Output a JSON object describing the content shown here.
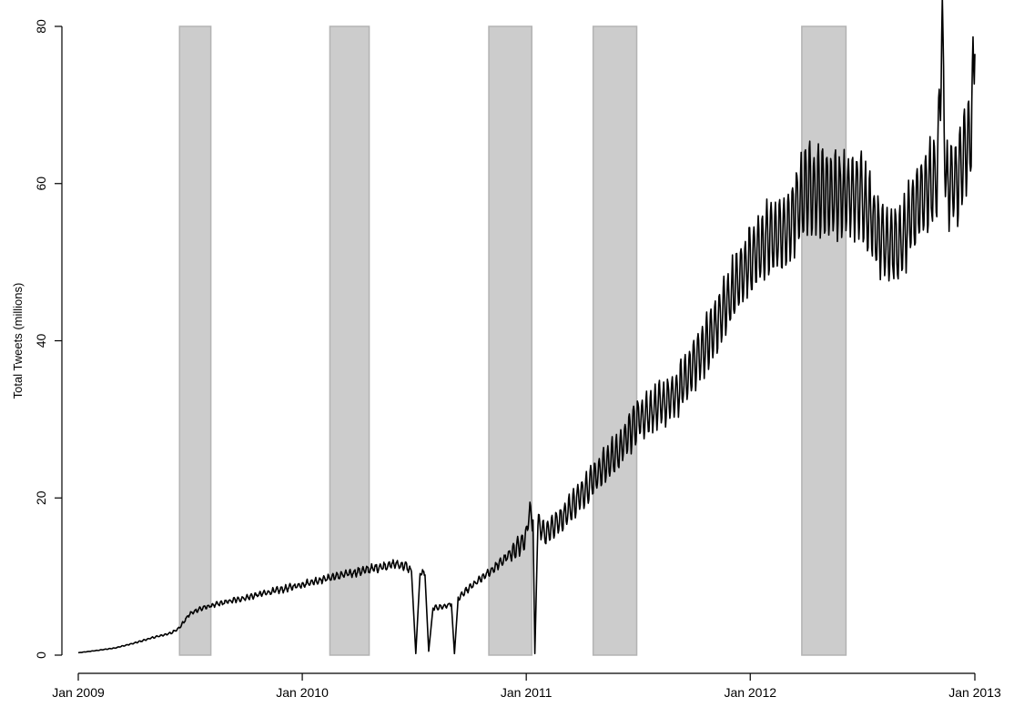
{
  "chart_data": {
    "type": "line",
    "ylabel": "Total Tweets (millions)",
    "xlabel": "",
    "title": "",
    "grid": false,
    "legend": "none",
    "xlim": [
      "2009-01-01",
      "2013-01-01"
    ],
    "ylim": [
      0,
      80
    ],
    "x_ticks": [
      {
        "date": "2009-01-01",
        "label": "Jan 2009"
      },
      {
        "date": "2010-01-01",
        "label": "Jan 2010"
      },
      {
        "date": "2011-01-01",
        "label": "Jan 2011"
      },
      {
        "date": "2012-01-01",
        "label": "Jan 2012"
      },
      {
        "date": "2013-01-01",
        "label": "Jan 2013"
      }
    ],
    "y_ticks": [
      {
        "value": 0,
        "label": "0"
      },
      {
        "value": 20,
        "label": "20"
      },
      {
        "value": 40,
        "label": "40"
      },
      {
        "value": 60,
        "label": "60"
      },
      {
        "value": 80,
        "label": "80"
      }
    ],
    "shaded_periods": [
      {
        "start": "2009-06-15",
        "end": "2009-08-05"
      },
      {
        "start": "2010-02-15",
        "end": "2010-04-20"
      },
      {
        "start": "2010-11-01",
        "end": "2011-01-10"
      },
      {
        "start": "2011-04-20",
        "end": "2011-06-30"
      },
      {
        "start": "2012-03-25",
        "end": "2012-06-05"
      }
    ],
    "series": [
      {
        "line_color": "#000000",
        "points": [
          [
            "2009-01-01",
            0.3
          ],
          [
            "2009-02-01",
            0.6
          ],
          [
            "2009-03-01",
            0.9
          ],
          [
            "2009-04-01",
            1.5
          ],
          [
            "2009-05-01",
            2.2
          ],
          [
            "2009-06-01",
            2.8
          ],
          [
            "2009-06-15",
            3.5
          ],
          [
            "2009-07-01",
            5.2
          ],
          [
            "2009-07-15",
            5.8
          ],
          [
            "2009-08-01",
            6.2
          ],
          [
            "2009-09-01",
            6.8
          ],
          [
            "2009-10-01",
            7.3
          ],
          [
            "2009-11-01",
            7.9
          ],
          [
            "2009-12-01",
            8.4
          ],
          [
            "2010-01-01",
            9.0
          ],
          [
            "2010-02-01",
            9.6
          ],
          [
            "2010-03-01",
            10.1
          ],
          [
            "2010-04-01",
            10.6
          ],
          [
            "2010-05-01",
            11.1
          ],
          [
            "2010-06-01",
            11.6
          ],
          [
            "2010-06-20",
            11.3
          ],
          [
            "2010-06-28",
            10.6
          ],
          [
            "2010-07-05",
            0.2
          ],
          [
            "2010-07-12",
            10.6
          ],
          [
            "2010-07-20",
            10.2
          ],
          [
            "2010-07-26",
            0.5
          ],
          [
            "2010-08-02",
            6.0
          ],
          [
            "2010-08-20",
            6.2
          ],
          [
            "2010-09-01",
            6.5
          ],
          [
            "2010-09-06",
            0.2
          ],
          [
            "2010-09-12",
            7.2
          ],
          [
            "2010-10-01",
            8.6
          ],
          [
            "2010-11-01",
            10.5
          ],
          [
            "2010-12-01",
            12.5
          ],
          [
            "2011-01-01",
            14.8
          ],
          [
            "2011-01-05",
            18.2
          ],
          [
            "2011-01-12",
            17.2
          ],
          [
            "2011-01-15",
            0.2
          ],
          [
            "2011-01-20",
            16.8
          ],
          [
            "2011-02-01",
            15.5
          ],
          [
            "2011-03-01",
            17.5
          ],
          [
            "2011-04-01",
            20.5
          ],
          [
            "2011-05-01",
            23.5
          ],
          [
            "2011-06-01",
            26.0
          ],
          [
            "2011-07-01",
            30.0
          ],
          [
            "2011-08-01",
            31.5
          ],
          [
            "2011-09-01",
            33.0
          ],
          [
            "2011-10-01",
            37.0
          ],
          [
            "2011-11-01",
            41.0
          ],
          [
            "2011-12-01",
            46.0
          ],
          [
            "2012-01-01",
            50.5
          ],
          [
            "2012-02-01",
            53.0
          ],
          [
            "2012-03-01",
            54.0
          ],
          [
            "2012-04-01",
            59.5
          ],
          [
            "2012-05-01",
            59.0
          ],
          [
            "2012-06-01",
            58.5
          ],
          [
            "2012-07-01",
            58.5
          ],
          [
            "2012-08-01",
            53.0
          ],
          [
            "2012-09-01",
            52.0
          ],
          [
            "2012-10-01",
            58.0
          ],
          [
            "2012-11-01",
            61.0
          ],
          [
            "2012-11-08",
            80.0
          ],
          [
            "2012-11-15",
            60.0
          ],
          [
            "2012-12-01",
            60.0
          ],
          [
            "2012-12-25",
            66.0
          ],
          [
            "2013-01-01",
            76.5
          ]
        ]
      }
    ]
  }
}
